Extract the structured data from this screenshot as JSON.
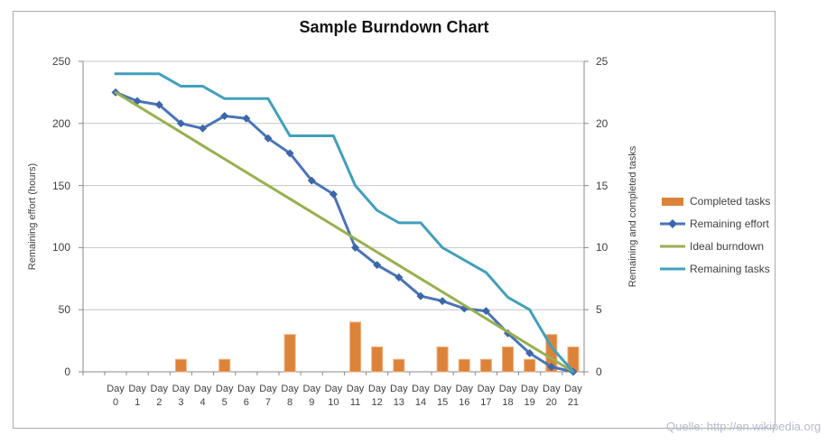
{
  "title": "Sample Burndown Chart",
  "source_note": "Quelle: http://en.wikipedia.org",
  "chart_data": {
    "type": "combo",
    "title": "Sample Burndown Chart",
    "x_label_prefix": "Day",
    "x": [
      0,
      1,
      2,
      3,
      4,
      5,
      6,
      7,
      8,
      9,
      10,
      11,
      12,
      13,
      14,
      15,
      16,
      17,
      18,
      19,
      20,
      21
    ],
    "left_axis": {
      "label": "Remaining effort (hours)",
      "range": [
        0,
        250
      ],
      "ticks": [
        0,
        50,
        100,
        150,
        200,
        250
      ]
    },
    "right_axis": {
      "label": "Remaining and completed tasks",
      "range": [
        0,
        25
      ],
      "ticks": [
        0,
        5,
        10,
        15,
        20,
        25
      ]
    },
    "grid": "horizontal",
    "legend_position": "right",
    "series": [
      {
        "name": "Completed tasks",
        "type": "bar",
        "axis": "right",
        "color": "#dd8239",
        "values": [
          0,
          0,
          0,
          1,
          0,
          1,
          0,
          0,
          3,
          0,
          0,
          4,
          2,
          1,
          0,
          2,
          1,
          1,
          2,
          1,
          3,
          2
        ]
      },
      {
        "name": "Remaining effort",
        "type": "line",
        "marker": "diamond",
        "axis": "left",
        "color": "#4a74b8",
        "marker_color": "#3d66a8",
        "values": [
          225,
          218,
          215,
          200,
          196,
          206,
          204,
          188,
          176,
          154,
          143,
          100,
          86,
          76,
          61,
          57,
          51,
          49,
          31,
          15,
          4,
          0
        ]
      },
      {
        "name": "Ideal burndown",
        "type": "line",
        "axis": "left",
        "color": "#97b04f",
        "values": [
          225,
          214.3,
          203.6,
          192.9,
          182.1,
          171.4,
          160.7,
          150,
          139.3,
          128.6,
          117.9,
          107.1,
          96.4,
          85.7,
          75,
          64.3,
          53.6,
          42.9,
          32.1,
          21.4,
          10.7,
          0
        ]
      },
      {
        "name": "Remaining tasks",
        "type": "line",
        "axis": "right",
        "color": "#41a0bc",
        "values": [
          24,
          24,
          24,
          23,
          23,
          22,
          22,
          22,
          19,
          19,
          19,
          15,
          13,
          12,
          12,
          10,
          9,
          8,
          6,
          5,
          2,
          0
        ]
      }
    ],
    "colors": {
      "gridline": "#c6c6c6",
      "axis": "#8a8a8a",
      "text": "#3f3f3f",
      "bar_border": "#edaf7e"
    }
  }
}
